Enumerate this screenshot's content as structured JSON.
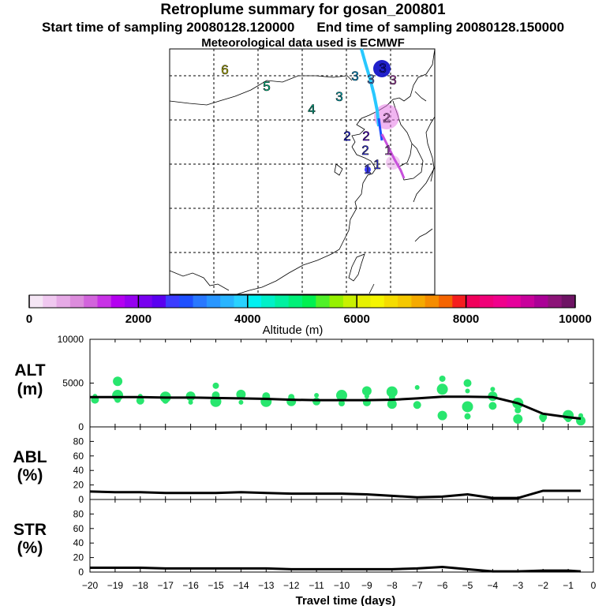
{
  "header": {
    "title": "Retroplume summary for gosan_200801",
    "start_time": "Start time of sampling 20080128.120000",
    "end_time": "End time of sampling 20080128.150000",
    "met_data": "Meteorological data used is ECMWF"
  },
  "map": {
    "day_markers": [
      {
        "label": "6",
        "color": "#e6e600"
      },
      {
        "label": "5",
        "color": "#00e6a0"
      },
      {
        "label": "4",
        "color": "#00c8a0"
      },
      {
        "label": "3",
        "color": "#00d2dc"
      },
      {
        "label": "3",
        "color": "#00b4ff"
      },
      {
        "label": "3",
        "color": "#6496ff"
      },
      {
        "label": "3",
        "color": "#1414dc"
      },
      {
        "label": "3",
        "color": "#d250d2"
      },
      {
        "label": "2",
        "color": "#dc78dc"
      },
      {
        "label": "2",
        "color": "#5a00e6"
      },
      {
        "label": "2",
        "color": "#3c3cff"
      },
      {
        "label": "2",
        "color": "#1e1eff"
      },
      {
        "label": "1",
        "color": "#be50dc"
      },
      {
        "label": "1",
        "color": "#3c3cff"
      },
      {
        "label": "1",
        "color": "#5050ff"
      }
    ]
  },
  "colorbar": {
    "ticks": [
      "0",
      "2000",
      "4000",
      "6000",
      "8000",
      "10000"
    ],
    "label": "Altitude (m)",
    "colors": [
      "#f5e6f5",
      "#f0c8f0",
      "#e6aae6",
      "#dc8cdc",
      "#d264dc",
      "#c832e6",
      "#b400f0",
      "#9600f0",
      "#7800f0",
      "#5a00f0",
      "#3c3cff",
      "#1e50ff",
      "#2878ff",
      "#2896ff",
      "#28b4ff",
      "#28d2ff",
      "#00f0f0",
      "#00f0c8",
      "#00f0a0",
      "#00f078",
      "#00f050",
      "#50f028",
      "#96f000",
      "#c8f000",
      "#e6f000",
      "#f5f500",
      "#f5dc00",
      "#f5c800",
      "#f5aa00",
      "#f58c00",
      "#f56400",
      "#f51e1e",
      "#f0005a",
      "#f00078",
      "#f0008c",
      "#e6009b",
      "#c8009b",
      "#aa0096",
      "#8c1478",
      "#6e1464"
    ]
  },
  "panels": [
    {
      "name": "ALT",
      "label": "ALT",
      "unit": "(m)"
    },
    {
      "name": "ABL",
      "label": "ABL",
      "unit": "(%)"
    },
    {
      "name": "STR",
      "label": "STR",
      "unit": "(%)"
    }
  ],
  "chart_data": [
    {
      "type": "line",
      "title": "ALT (m)",
      "ylabel": "ALT (m)",
      "xlabel": "Travel time (days)",
      "xlim": [
        -20,
        0
      ],
      "ylim": [
        0,
        10000
      ],
      "yticks": [
        0,
        5000,
        10000
      ],
      "x": [
        -20,
        -19,
        -18,
        -17,
        -16,
        -15,
        -14,
        -13,
        -12,
        -11,
        -10,
        -9,
        -8,
        -7,
        -6,
        -5,
        -4,
        -3,
        -2,
        -1,
        -0.5
      ],
      "series": [
        {
          "name": "mean altitude",
          "values": [
            3400,
            3400,
            3400,
            3350,
            3350,
            3300,
            3250,
            3200,
            3100,
            3050,
            3050,
            3050,
            3100,
            3250,
            3450,
            3450,
            3400,
            2700,
            1500,
            1100,
            950
          ]
        }
      ],
      "scatter": {
        "name": "particle altitudes",
        "color": "#28e66e",
        "points": [
          [
            -19.8,
            3500
          ],
          [
            -19.8,
            3100
          ],
          [
            -18.9,
            3600
          ],
          [
            -18.9,
            3100
          ],
          [
            -18.9,
            5200
          ],
          [
            -18,
            3500
          ],
          [
            -18,
            3000
          ],
          [
            -17,
            3400
          ],
          [
            -17,
            3000
          ],
          [
            -16,
            3500
          ],
          [
            -16,
            2800
          ],
          [
            -15,
            3600
          ],
          [
            -15,
            2900
          ],
          [
            -15,
            4700
          ],
          [
            -14,
            3700
          ],
          [
            -14,
            2800
          ],
          [
            -13,
            3500
          ],
          [
            -13,
            2900
          ],
          [
            -12,
            3400
          ],
          [
            -12,
            2900
          ],
          [
            -11,
            3600
          ],
          [
            -11,
            2900
          ],
          [
            -10,
            3600
          ],
          [
            -10,
            2700
          ],
          [
            -9,
            4100
          ],
          [
            -9,
            3500
          ],
          [
            -9,
            2800
          ],
          [
            -8,
            4000
          ],
          [
            -8,
            3400
          ],
          [
            -8,
            2600
          ],
          [
            -7,
            4500
          ],
          [
            -7,
            2500
          ],
          [
            -6,
            4300
          ],
          [
            -6,
            5500
          ],
          [
            -6,
            1300
          ],
          [
            -5,
            4100
          ],
          [
            -5,
            5000
          ],
          [
            -5,
            2300
          ],
          [
            -5,
            1200
          ],
          [
            -4,
            3500
          ],
          [
            -4,
            4300
          ],
          [
            -4,
            2400
          ],
          [
            -3,
            2700
          ],
          [
            -3,
            1900
          ],
          [
            -3,
            900
          ],
          [
            -2,
            800
          ],
          [
            -2,
            1100
          ],
          [
            -1,
            1300
          ],
          [
            -1,
            900
          ],
          [
            -0.5,
            700
          ],
          [
            -0.5,
            1300
          ]
        ]
      }
    },
    {
      "type": "line",
      "title": "ABL (%)",
      "ylabel": "ABL (%)",
      "xlim": [
        -20,
        0
      ],
      "ylim": [
        0,
        100
      ],
      "yticks": [
        0,
        20,
        40,
        60,
        80
      ],
      "x": [
        -20,
        -19,
        -18,
        -17,
        -16,
        -15,
        -14,
        -13,
        -12,
        -11,
        -10,
        -9,
        -8,
        -7,
        -6,
        -5,
        -4,
        -3,
        -2,
        -1,
        -0.5
      ],
      "series": [
        {
          "name": "fraction in ABL",
          "values": [
            11,
            10,
            10,
            9,
            9,
            9,
            10,
            9,
            8,
            8,
            8,
            7,
            5,
            3,
            4,
            7,
            2,
            2,
            12,
            12,
            12
          ]
        }
      ]
    },
    {
      "type": "line",
      "title": "STR (%)",
      "ylabel": "STR (%)",
      "xlabel": "Travel time (days)",
      "xlim": [
        -20,
        0
      ],
      "ylim": [
        0,
        100
      ],
      "yticks": [
        0,
        20,
        40,
        60,
        80
      ],
      "xticks": [
        -20,
        -19,
        -18,
        -17,
        -16,
        -15,
        -14,
        -13,
        -12,
        -11,
        -10,
        -9,
        -8,
        -7,
        -6,
        -5,
        -4,
        -3,
        -2,
        -1,
        0
      ],
      "x": [
        -20,
        -19,
        -18,
        -17,
        -16,
        -15,
        -14,
        -13,
        -12,
        -11,
        -10,
        -9,
        -8,
        -7,
        -6,
        -5,
        -4,
        -3,
        -2,
        -1,
        -0.5
      ],
      "series": [
        {
          "name": "fraction in stratosphere",
          "values": [
            6,
            6,
            6,
            5,
            5,
            5,
            5,
            5,
            4,
            4,
            4,
            4,
            4,
            5,
            7,
            4,
            1,
            1,
            2,
            2,
            1
          ]
        }
      ]
    }
  ]
}
